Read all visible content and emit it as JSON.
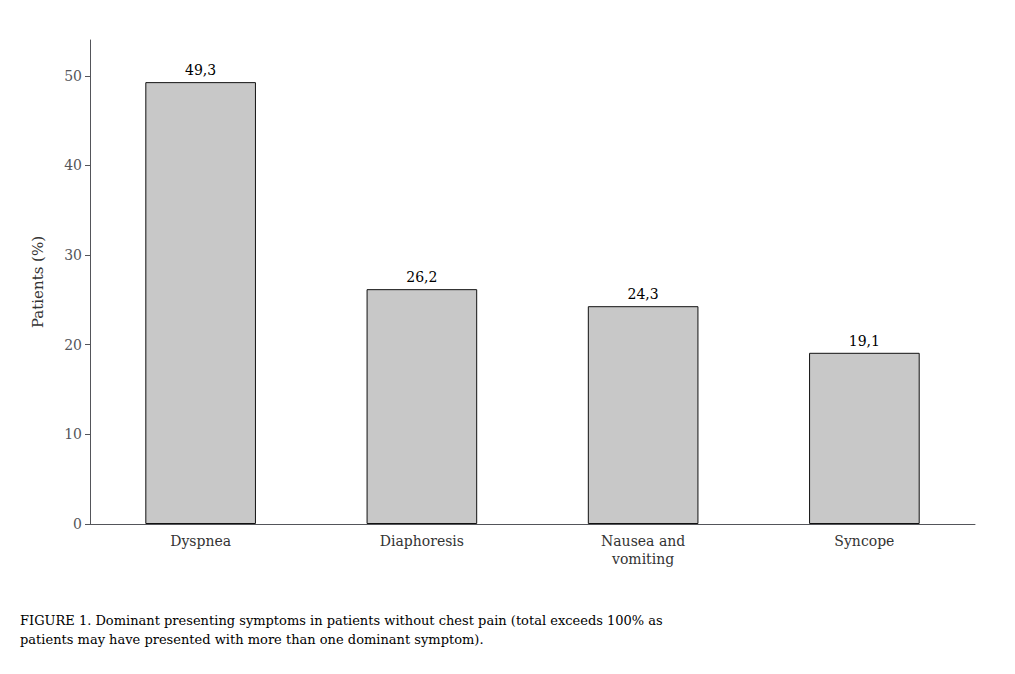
{
  "chart_data": {
    "type": "bar",
    "categories": [
      "Dyspnea",
      "Diaphoresis",
      "Nausea and\nvomiting",
      "Syncope"
    ],
    "values": [
      49.3,
      26.2,
      24.3,
      19.1
    ],
    "value_labels": [
      "49,3",
      "26,2",
      "24,3",
      "19,1"
    ],
    "data_labels": true,
    "color": "#c8c8c8",
    "ylabel": "Patients (%)",
    "ylim": [
      0,
      54
    ],
    "yticks": [
      0,
      10,
      20,
      30,
      40,
      50
    ],
    "grid": false,
    "annotations": [
      "FIGURE 1. Dominant presenting symptoms in patients without chest pain (total exceeds 100% as\npatients may have presented with more than one dominant symptom)."
    ]
  }
}
